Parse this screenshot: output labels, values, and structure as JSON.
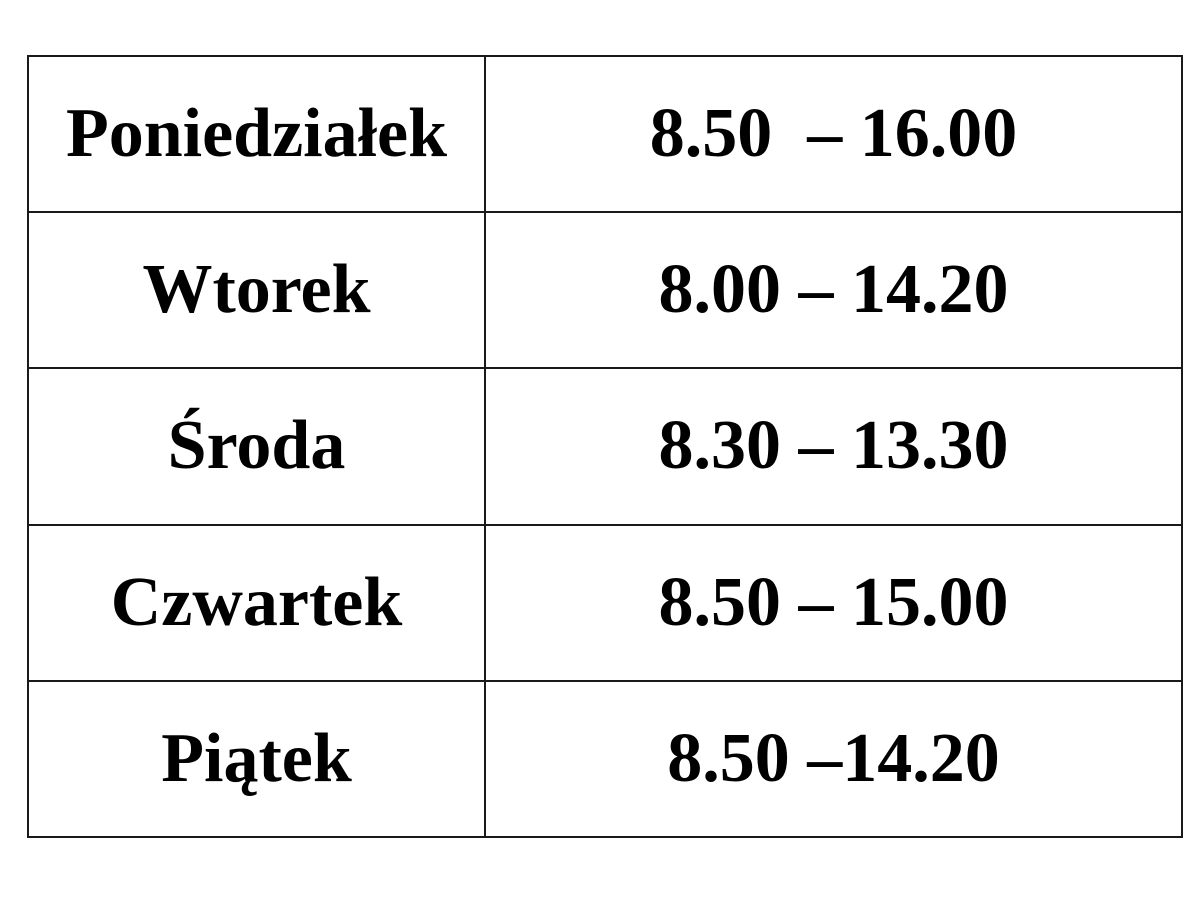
{
  "schedule": {
    "rows": [
      {
        "day": "Poniedziałek",
        "hours": "8.50  – 16.00"
      },
      {
        "day": "Wtorek",
        "hours": "8.00 – 14.20"
      },
      {
        "day": "Środa",
        "hours": "8.30 – 13.30"
      },
      {
        "day": "Czwartek",
        "hours": "8.50 – 15.00"
      },
      {
        "day": "Piątek",
        "hours": "8.50 –14.20"
      }
    ]
  }
}
